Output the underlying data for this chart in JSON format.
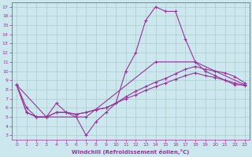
{
  "line1_x": [
    0,
    1,
    2,
    3,
    4,
    5,
    6,
    7,
    8,
    9,
    10,
    11,
    12,
    13,
    14,
    15,
    16,
    17,
    18,
    19,
    20,
    21,
    22,
    23
  ],
  "line1_y": [
    8.5,
    6.0,
    5.0,
    5.0,
    6.5,
    5.5,
    5.0,
    3.0,
    4.5,
    5.5,
    6.5,
    10.0,
    12.0,
    15.5,
    17.0,
    16.5,
    16.5,
    13.5,
    11.0,
    10.0,
    9.5,
    9.0,
    8.5,
    8.5
  ],
  "line2_x": [
    0,
    1,
    2,
    3,
    4,
    5,
    6,
    7,
    8,
    9,
    10,
    11,
    12,
    13,
    14,
    15,
    16,
    17,
    18,
    19,
    20,
    21,
    22,
    23
  ],
  "line2_y": [
    8.5,
    5.5,
    5.0,
    5.0,
    5.5,
    5.5,
    5.3,
    5.5,
    5.8,
    6.0,
    6.5,
    7.2,
    7.8,
    8.3,
    8.8,
    9.2,
    9.7,
    10.2,
    10.5,
    10.2,
    10.0,
    9.8,
    9.4,
    8.7
  ],
  "line3_x": [
    0,
    1,
    2,
    3,
    4,
    5,
    6,
    7,
    8,
    9,
    10,
    11,
    12,
    13,
    14,
    15,
    16,
    17,
    18,
    19,
    20,
    21,
    22,
    23
  ],
  "line3_y": [
    8.5,
    5.5,
    5.0,
    5.0,
    5.5,
    5.5,
    5.3,
    5.5,
    5.8,
    6.0,
    6.5,
    7.0,
    7.4,
    7.9,
    8.3,
    8.7,
    9.1,
    9.5,
    9.8,
    9.5,
    9.3,
    9.0,
    8.7,
    8.4
  ],
  "line4_x": [
    0,
    3,
    7,
    14,
    18,
    23
  ],
  "line4_y": [
    8.5,
    5.0,
    5.0,
    11.0,
    11.0,
    8.5
  ],
  "bg_color": "#cce8ee",
  "grid_color": "#aacccc",
  "line_color": "#993399",
  "xlabel": "Windchill (Refroidissement éolien,°C)",
  "xlim": [
    -0.5,
    23.5
  ],
  "ylim": [
    2.5,
    17.5
  ],
  "yticks": [
    3,
    4,
    5,
    6,
    7,
    8,
    9,
    10,
    11,
    12,
    13,
    14,
    15,
    16,
    17
  ],
  "xticks": [
    0,
    1,
    2,
    3,
    4,
    5,
    6,
    7,
    8,
    9,
    10,
    11,
    12,
    13,
    14,
    15,
    16,
    17,
    18,
    19,
    20,
    21,
    22,
    23
  ],
  "tick_color": "#993399",
  "label_color": "#993399",
  "figsize": [
    3.2,
    2.0
  ],
  "dpi": 100
}
